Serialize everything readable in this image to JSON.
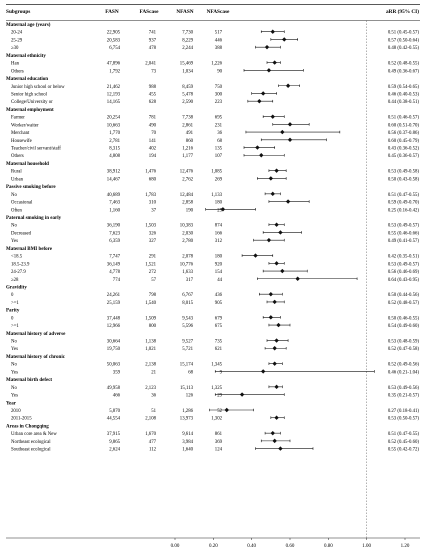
{
  "chart_data": {
    "type": "forest",
    "columns": [
      "Subgroups",
      "FASN",
      "FAScase",
      "NFASN",
      "NFAScase",
      "aRR (95% CI)"
    ],
    "x_ticks": [
      "0.00",
      "0.20",
      "0.40",
      "0.60",
      "0.80",
      "1.00",
      "1.20"
    ],
    "xlim": [
      0,
      1.2
    ],
    "reference_line": 1.0,
    "rows": [
      {
        "type": "header",
        "label": "Maternal age (years)"
      },
      {
        "type": "data",
        "label": "20-24",
        "fasn": "22,905",
        "fascase": "741",
        "nfasn": "7,730",
        "nfascase": "517",
        "ci_text": "0.51 (0.45-0.57)",
        "est": 0.51,
        "lo": 0.45,
        "hi": 0.57
      },
      {
        "type": "data",
        "label": "25-29",
        "fasn": "20,583",
        "fascase": "937",
        "nfasn": "8,229",
        "nfascase": "446",
        "ci_text": "0.57 (0.50-0.64)",
        "est": 0.57,
        "lo": 0.5,
        "hi": 0.64
      },
      {
        "type": "data",
        "label": "≥30",
        "fasn": "6,754",
        "fascase": "478",
        "nfasn": "2,244",
        "nfascase": "388",
        "ci_text": "0.48 (0.42-0.55)",
        "est": 0.48,
        "lo": 0.42,
        "hi": 0.55
      },
      {
        "type": "header",
        "label": "Maternal ethnicity"
      },
      {
        "type": "data",
        "label": "Han",
        "fasn": "47,896",
        "fascase": "2,041",
        "nfasn": "15,469",
        "nfascase": "1,226",
        "ci_text": "0.52 (0.48-0.55)",
        "est": 0.52,
        "lo": 0.48,
        "hi": 0.55
      },
      {
        "type": "data",
        "label": "Others",
        "fasn": "1,792",
        "fascase": "73",
        "nfasn": "1,034",
        "nfascase": "90",
        "ci_text": "0.49 (0.36-0.67)",
        "est": 0.49,
        "lo": 0.36,
        "hi": 0.67
      },
      {
        "type": "header",
        "label": "Maternal education"
      },
      {
        "type": "data",
        "label": "Junior high school or below",
        "fasn": "21,462",
        "fascase": "988",
        "nfasn": "8,459",
        "nfascase": "750",
        "ci_text": "0.59 (0.54-0.65)",
        "est": 0.59,
        "lo": 0.54,
        "hi": 0.65
      },
      {
        "type": "data",
        "label": "Senior high school",
        "fasn": "12,193",
        "fascase": "455",
        "nfasn": "5,478",
        "nfascase": "300",
        "ci_text": "0.46 (0.40-0.53)",
        "est": 0.46,
        "lo": 0.4,
        "hi": 0.53
      },
      {
        "type": "data",
        "label": "College/University or",
        "fasn": "14,165",
        "fascase": "628",
        "nfasn": "2,590",
        "nfascase": "223",
        "ci_text": "0.44 (0.38-0.51)",
        "est": 0.44,
        "lo": 0.38,
        "hi": 0.51
      },
      {
        "type": "header",
        "label": "Maternal employment"
      },
      {
        "type": "data",
        "label": "Farmer",
        "fasn": "20,254",
        "fascase": "781",
        "nfasn": "7,738",
        "nfascase": "695",
        "ci_text": "0.51 (0.46-0.57)",
        "est": 0.51,
        "lo": 0.46,
        "hi": 0.57
      },
      {
        "type": "data",
        "label": "Worker/waiter",
        "fasn": "10,663",
        "fascase": "490",
        "nfasn": "2,861",
        "nfascase": "231",
        "ci_text": "0.60 (0.51-0.70)",
        "est": 0.6,
        "lo": 0.51,
        "hi": 0.7
      },
      {
        "type": "data",
        "label": "Merchant",
        "fasn": "1,770",
        "fascase": "70",
        "nfasn": "491",
        "nfascase": "36",
        "ci_text": "0.56 (0.37-0.86)",
        "est": 0.56,
        "lo": 0.37,
        "hi": 0.86
      },
      {
        "type": "data",
        "label": "Housewife",
        "fasn": "2,781",
        "fascase": "141",
        "nfasn": "860",
        "nfascase": "68",
        "ci_text": "0.60 (0.45-0.79)",
        "est": 0.6,
        "lo": 0.45,
        "hi": 0.79
      },
      {
        "type": "data",
        "label": "Teacher/civil servant/staff",
        "fasn": "8,315",
        "fascase": "402",
        "nfasn": "1,216",
        "nfascase": "135",
        "ci_text": "0.43 (0.36-0.52)",
        "est": 0.43,
        "lo": 0.36,
        "hi": 0.52
      },
      {
        "type": "data",
        "label": "Others",
        "fasn": "4,808",
        "fascase": "194",
        "nfasn": "1,177",
        "nfascase": "107",
        "ci_text": "0.45 (0.36-0.57)",
        "est": 0.45,
        "lo": 0.36,
        "hi": 0.57
      },
      {
        "type": "header",
        "label": "Maternal household"
      },
      {
        "type": "data",
        "label": "Rural",
        "fasn": "38,912",
        "fascase": "1,476",
        "nfasn": "12,476",
        "nfascase": "1,085",
        "ci_text": "0.53 (0.49-0.58)",
        "est": 0.53,
        "lo": 0.49,
        "hi": 0.58
      },
      {
        "type": "data",
        "label": "Urban",
        "fasn": "14,467",
        "fascase": "680",
        "nfasn": "2,762",
        "nfascase": "269",
        "ci_text": "0.50 (0.43-0.58)",
        "est": 0.5,
        "lo": 0.43,
        "hi": 0.58
      },
      {
        "type": "header",
        "label": "Passive smoking before"
      },
      {
        "type": "data",
        "label": "No",
        "fasn": "40,689",
        "fascase": "1,783",
        "nfasn": "12,484",
        "nfascase": "1,133",
        "ci_text": "0.51 (0.47-0.55)",
        "est": 0.51,
        "lo": 0.47,
        "hi": 0.55
      },
      {
        "type": "data",
        "label": "Occasional",
        "fasn": "7,463",
        "fascase": "310",
        "nfasn": "2,858",
        "nfascase": "180",
        "ci_text": "0.59 (0.49-0.70)",
        "est": 0.59,
        "lo": 0.49,
        "hi": 0.7
      },
      {
        "type": "data",
        "label": "Often",
        "fasn": "1,160",
        "fascase": "37",
        "nfasn": "190",
        "nfascase": "25",
        "ci_text": "0.25 (0.16-0.42)",
        "est": 0.25,
        "lo": 0.16,
        "hi": 0.42
      },
      {
        "type": "header",
        "label": "Paternal smoking in early"
      },
      {
        "type": "data",
        "label": "No",
        "fasn": "36,190",
        "fascase": "1,503",
        "nfasn": "10,383",
        "nfascase": "874",
        "ci_text": "0.53 (0.49-0.57)",
        "est": 0.53,
        "lo": 0.49,
        "hi": 0.57
      },
      {
        "type": "data",
        "label": "Decreased",
        "fasn": "7,623",
        "fascase": "326",
        "nfasn": "2,030",
        "nfascase": "166",
        "ci_text": "0.55 (0.46-0.66)",
        "est": 0.55,
        "lo": 0.46,
        "hi": 0.66
      },
      {
        "type": "data",
        "label": "Yes",
        "fasn": "6,359",
        "fascase": "327",
        "nfasn": "2,780",
        "nfascase": "312",
        "ci_text": "0.49 (0.41-0.57)",
        "est": 0.49,
        "lo": 0.41,
        "hi": 0.57
      },
      {
        "type": "header",
        "label": "Maternal BMI before"
      },
      {
        "type": "data",
        "label": "<18.5",
        "fasn": "7,747",
        "fascase": "291",
        "nfasn": "2,078",
        "nfascase": "180",
        "ci_text": "0.42 (0.35-0.51)",
        "est": 0.42,
        "lo": 0.35,
        "hi": 0.51
      },
      {
        "type": "data",
        "label": "18.5-23.9",
        "fasn": "36,149",
        "fascase": "1,521",
        "nfasn": "10,776",
        "nfascase": "920",
        "ci_text": "0.53 (0.49-0.57)",
        "est": 0.53,
        "lo": 0.49,
        "hi": 0.57
      },
      {
        "type": "data",
        "label": "24-27.9",
        "fasn": "4,778",
        "fascase": "272",
        "nfasn": "1,633",
        "nfascase": "154",
        "ci_text": "0.56 (0.46-0.69)",
        "est": 0.56,
        "lo": 0.46,
        "hi": 0.69
      },
      {
        "type": "data",
        "label": "≥28",
        "fasn": "774",
        "fascase": "57",
        "nfasn": "317",
        "nfascase": "44",
        "ci_text": "0.64 (0.43-0.95)",
        "est": 0.64,
        "lo": 0.43,
        "hi": 0.95
      },
      {
        "type": "header",
        "label": "Gravidity"
      },
      {
        "type": "data",
        "label": "0",
        "fasn": "24,261",
        "fascase": "798",
        "nfasn": "6,767",
        "nfascase": "436",
        "ci_text": "0.50 (0.44-0.56)",
        "est": 0.5,
        "lo": 0.44,
        "hi": 0.56
      },
      {
        "type": "data",
        "label": ">=1",
        "fasn": "25,159",
        "fascase": "1,540",
        "nfasn": "8,015",
        "nfascase": "905",
        "ci_text": "0.52 (0.48-0.57)",
        "est": 0.52,
        "lo": 0.48,
        "hi": 0.57
      },
      {
        "type": "header",
        "label": "Parity"
      },
      {
        "type": "data",
        "label": "0",
        "fasn": "37,448",
        "fascase": "1,509",
        "nfasn": "9,543",
        "nfascase": "679",
        "ci_text": "0.50 (0.46-0.55)",
        "est": 0.5,
        "lo": 0.46,
        "hi": 0.55
      },
      {
        "type": "data",
        "label": ">=1",
        "fasn": "12,966",
        "fascase": "800",
        "nfasn": "5,596",
        "nfascase": "675",
        "ci_text": "0.54 (0.49-0.60)",
        "est": 0.54,
        "lo": 0.49,
        "hi": 0.6
      },
      {
        "type": "header",
        "label": "Maternal history of adverse"
      },
      {
        "type": "data",
        "label": "No",
        "fasn": "30,664",
        "fascase": "1,138",
        "nfasn": "9,527",
        "nfascase": "735",
        "ci_text": "0.53 (0.48-0.59)",
        "est": 0.53,
        "lo": 0.48,
        "hi": 0.59
      },
      {
        "type": "data",
        "label": "Yes",
        "fasn": "19,750",
        "fascase": "1,021",
        "nfasn": "5,721",
        "nfascase": "621",
        "ci_text": "0.52 (0.47-0.58)",
        "est": 0.52,
        "lo": 0.47,
        "hi": 0.58
      },
      {
        "type": "header",
        "label": "Maternal history of chronic"
      },
      {
        "type": "data",
        "label": "No",
        "fasn": "50,063",
        "fascase": "2,138",
        "nfasn": "15,174",
        "nfascase": "1,345",
        "ci_text": "0.52 (0.49-0.56)",
        "est": 0.52,
        "lo": 0.49,
        "hi": 0.56
      },
      {
        "type": "data",
        "label": "Yes",
        "fasn": "359",
        "fascase": "21",
        "nfasn": "68",
        "nfascase": "9",
        "ci_text": "0.46 (0.21-1.04)",
        "est": 0.46,
        "lo": 0.21,
        "hi": 1.04
      },
      {
        "type": "header",
        "label": "Maternal birth defect"
      },
      {
        "type": "data",
        "label": "No",
        "fasn": "49,958",
        "fascase": "2,123",
        "nfasn": "15,113",
        "nfascase": "1,325",
        "ci_text": "0.53 (0.49-0.56)",
        "est": 0.53,
        "lo": 0.49,
        "hi": 0.56
      },
      {
        "type": "data",
        "label": "Yes",
        "fasn": "466",
        "fascase": "36",
        "nfasn": "126",
        "nfascase": "29",
        "ci_text": "0.35 (0.21-0.57)",
        "est": 0.35,
        "lo": 0.21,
        "hi": 0.57
      },
      {
        "type": "header",
        "label": "Year"
      },
      {
        "type": "data",
        "label": "2010",
        "fasn": "5,870",
        "fascase": "51",
        "nfasn": "1,286",
        "nfascase": "52",
        "ci_text": "0.27 (0.18-0.41)",
        "est": 0.27,
        "lo": 0.18,
        "hi": 0.41
      },
      {
        "type": "data",
        "label": "2011-2015",
        "fasn": "44,554",
        "fascase": "2,108",
        "nfasn": "13,973",
        "nfascase": "1,302",
        "ci_text": "0.53 (0.50-0.57)",
        "est": 0.53,
        "lo": 0.5,
        "hi": 0.57
      },
      {
        "type": "header",
        "label": "Areas in Chongqing"
      },
      {
        "type": "data",
        "label": "Urban core area & New",
        "fasn": "37,915",
        "fascase": "1,670",
        "nfasn": "9,614",
        "nfascase": "861",
        "ci_text": "0.51 (0.47-0.55)",
        "est": 0.51,
        "lo": 0.47,
        "hi": 0.55
      },
      {
        "type": "data",
        "label": "Northeast ecological",
        "fasn": "9,865",
        "fascase": "477",
        "nfasn": "3,984",
        "nfascase": "369",
        "ci_text": "0.52 (0.45-0.60)",
        "est": 0.52,
        "lo": 0.45,
        "hi": 0.6
      },
      {
        "type": "data",
        "label": "Southeast ecological",
        "fasn": "2,624",
        "fascase": "112",
        "nfasn": "1,640",
        "nfascase": "124",
        "ci_text": "0.55 (0.42-0.72)",
        "est": 0.55,
        "lo": 0.42,
        "hi": 0.72
      }
    ]
  }
}
